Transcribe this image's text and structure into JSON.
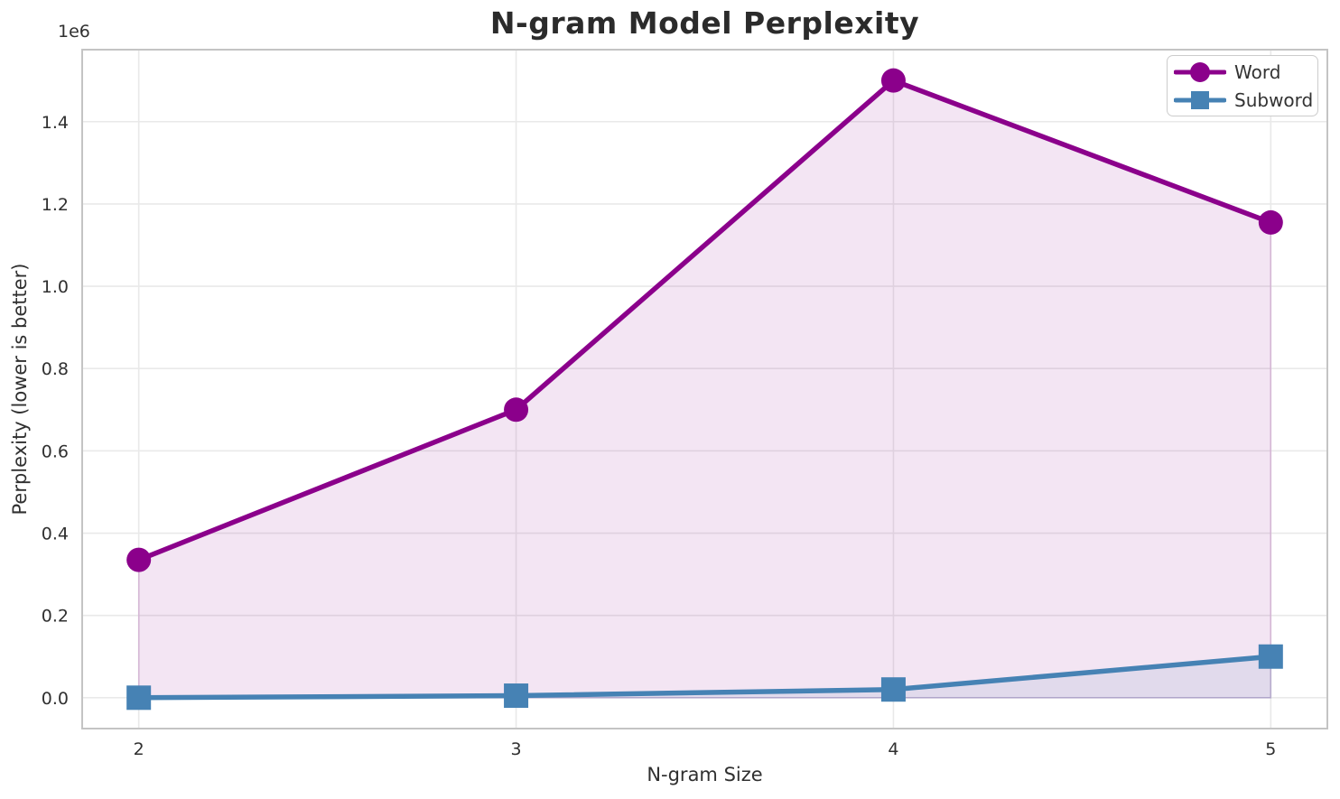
{
  "chart_data": {
    "type": "line",
    "title": "N-gram Model Perplexity",
    "xlabel": "N-gram Size",
    "ylabel": "Perplexity (lower is better)",
    "offset_label": "1e6",
    "x": [
      2,
      3,
      4,
      5
    ],
    "series": [
      {
        "name": "Word",
        "values": [
          335000,
          700000,
          1500000,
          1155000
        ],
        "color": "#8B008B",
        "marker": "circle",
        "fill_to_zero": true,
        "fill_alpha": 0.1
      },
      {
        "name": "Subword",
        "values": [
          50,
          5000,
          20000,
          100000
        ],
        "color": "#4682B4",
        "marker": "square",
        "fill_to_zero": true,
        "fill_alpha": 0.1
      }
    ],
    "xlim": [
      1.85,
      5.15
    ],
    "ylim": [
      -75000,
      1575000
    ],
    "xticks": [
      2,
      3,
      4,
      5
    ],
    "xtick_labels": [
      "2",
      "3",
      "4",
      "5"
    ],
    "yticks": [
      0,
      200000,
      400000,
      600000,
      800000,
      1000000,
      1200000,
      1400000
    ],
    "ytick_labels": [
      "0.0",
      "0.2",
      "0.4",
      "0.6",
      "0.8",
      "1.0",
      "1.2",
      "1.4"
    ],
    "grid": true,
    "legend_position": "upper right",
    "legend": [
      "Word",
      "Subword"
    ]
  },
  "style": {
    "grid_color": "#e9e9e9",
    "spine_color": "#c4c4c4",
    "tick_label_color": "#303030",
    "line_width": 5.5,
    "marker_size": 27
  }
}
